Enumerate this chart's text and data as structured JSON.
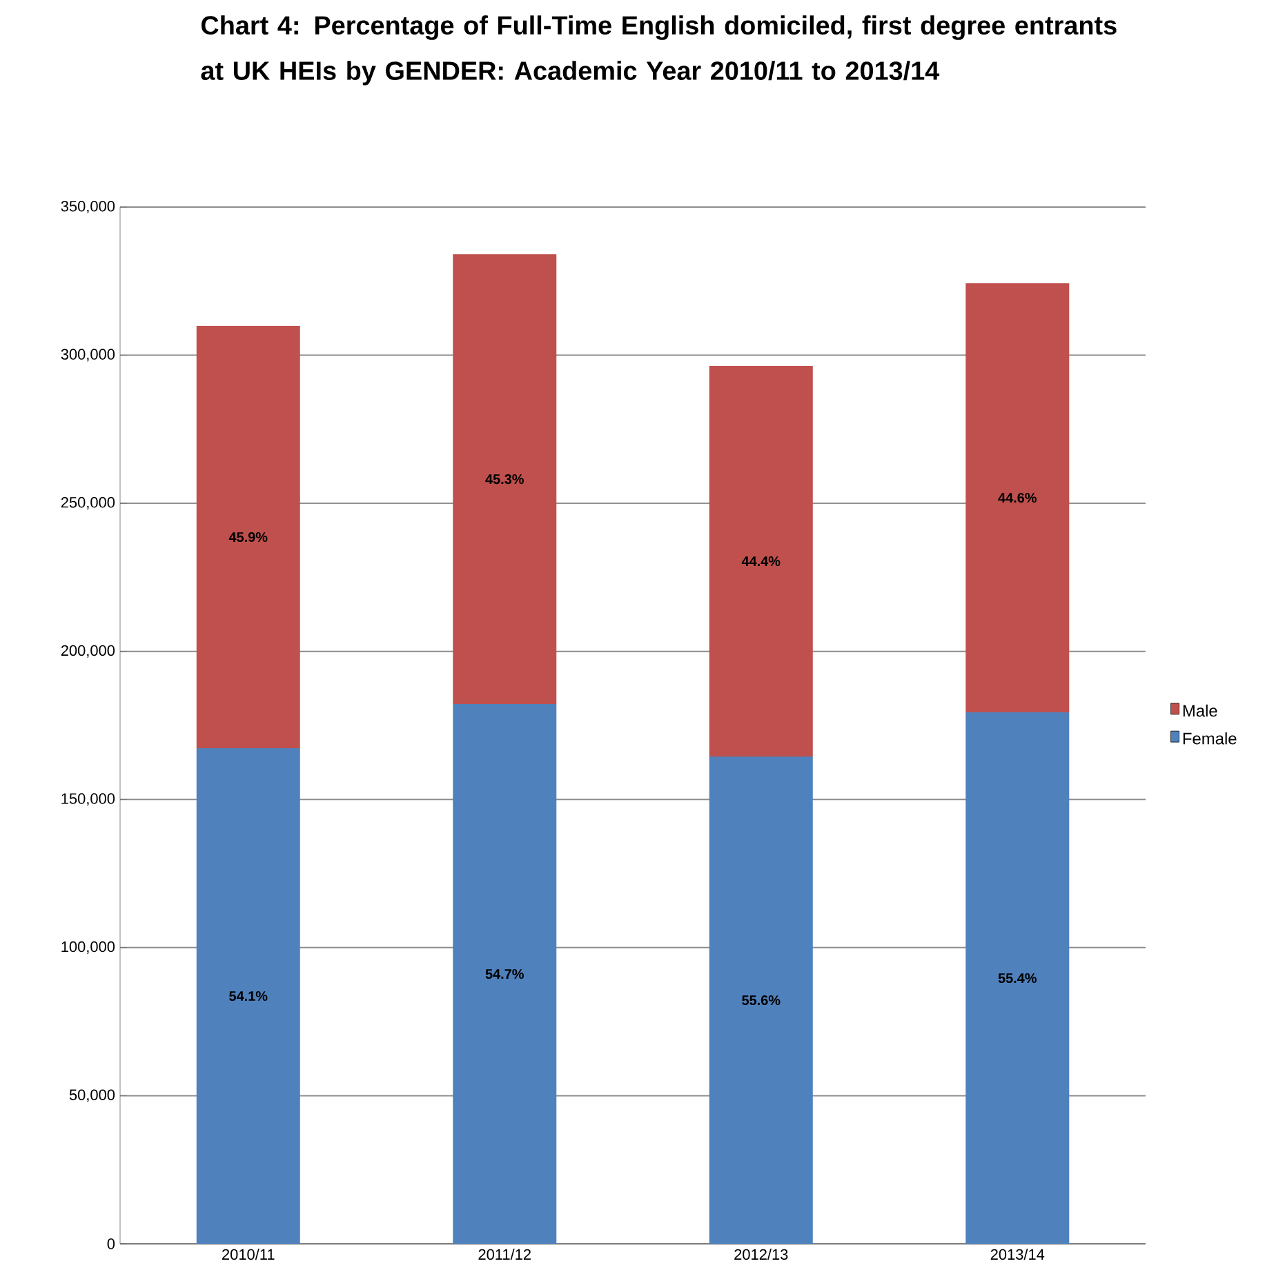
{
  "chart_data": {
    "type": "bar",
    "title": "Chart 4:  Percentage of Full-Time English domiciled, first degree entrants at UK HEIs by GENDER: Academic Year 2010/11 to 2013/14",
    "categories": [
      "2010/11",
      "2011/12",
      "2012/13",
      "2013/14"
    ],
    "stacked": true,
    "series": [
      {
        "name": "Female",
        "color": "#4f81bd",
        "values": [
          167300,
          182200,
          164500,
          179400
        ]
      },
      {
        "name": "Male",
        "color": "#c0504d",
        "values": [
          142600,
          151900,
          131900,
          144900
        ]
      }
    ],
    "annotations": [
      "54.1%",
      "54.7%",
      "55.6%",
      "55.4%",
      "45.9%",
      "45.3%",
      "44.4%",
      "44.6%"
    ],
    "ylim": [
      0,
      350000
    ],
    "yticks": [
      0,
      {
        "value": 50000,
        "label": "50,000"
      },
      {
        "value": 100000,
        "label": "100,000"
      },
      {
        "value": 150000,
        "label": "150,000"
      },
      {
        "value": 200000,
        "label": "200,000"
      },
      {
        "value": 250000,
        "label": "250,000"
      },
      {
        "value": 300000,
        "label": "300,000"
      },
      {
        "value": 350000,
        "label": "350,000"
      }
    ],
    "grid": "y",
    "legend": "right"
  }
}
